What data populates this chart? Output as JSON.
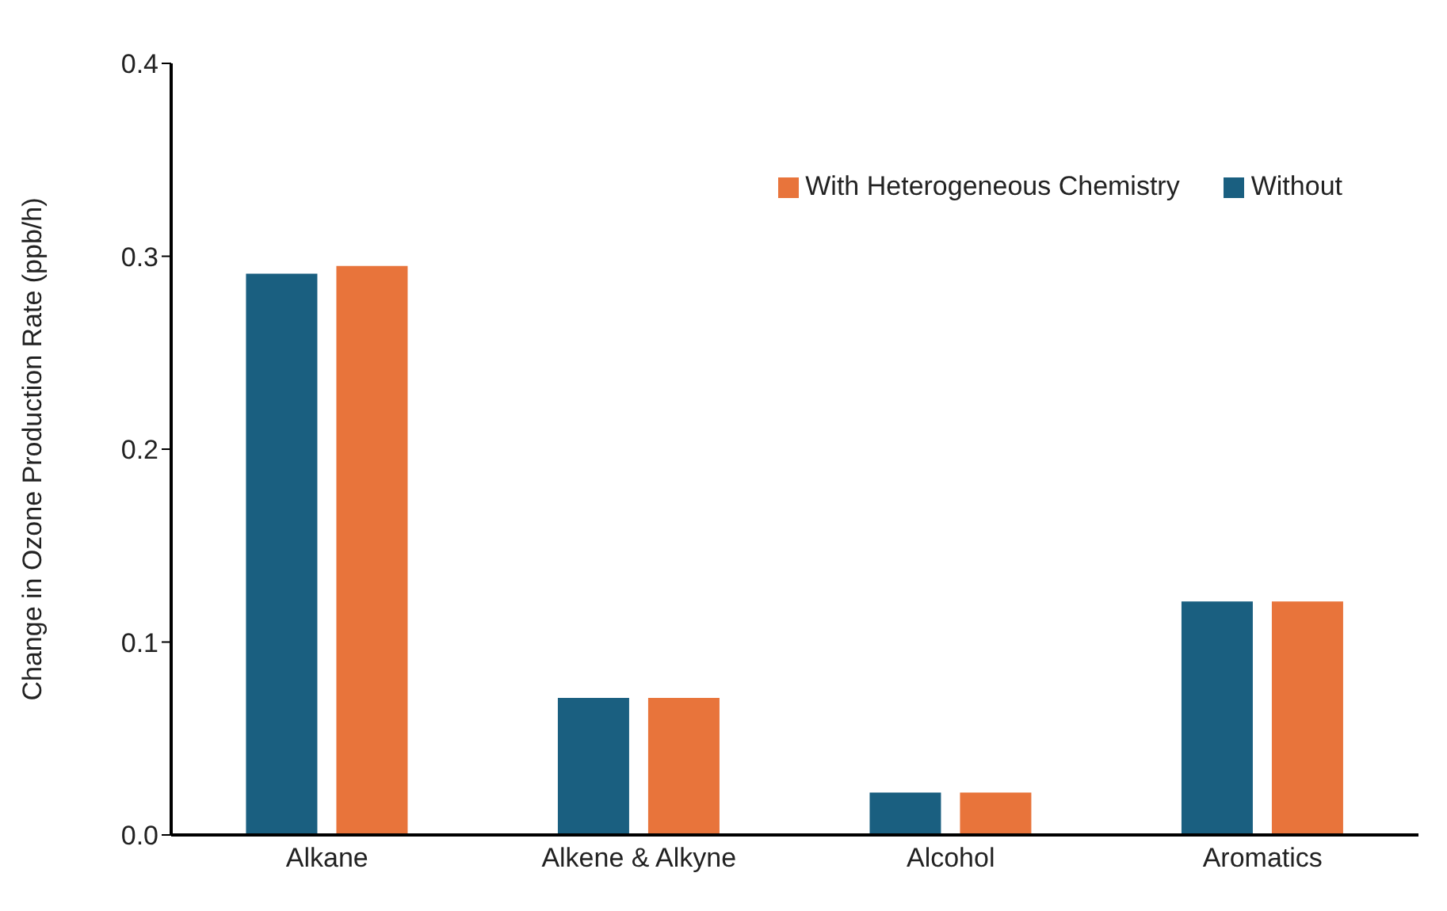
{
  "chart_data": {
    "type": "bar",
    "ylabel": "Change in Ozone Production Rate  (ppb/h)",
    "categories": [
      "Alkane",
      "Alkene & Alkyne",
      "Alcohol",
      "Aromatics"
    ],
    "series": [
      {
        "name": "Without",
        "color": "#1a5f80",
        "values": [
          0.291,
          0.071,
          0.022,
          0.121
        ]
      },
      {
        "name": "With Heterogeneous Chemistry",
        "color": "#e8743b",
        "values": [
          0.295,
          0.071,
          0.022,
          0.121
        ]
      }
    ],
    "ylim": [
      0,
      0.4
    ],
    "yticks": [
      {
        "value": 0,
        "label": "0.0"
      },
      {
        "value": 0.1,
        "label": "0.1"
      },
      {
        "value": 0.2,
        "label": "0.2"
      },
      {
        "value": 0.3,
        "label": "0.3"
      },
      {
        "value": 0.4,
        "label": "0.4"
      }
    ],
    "grid": false,
    "legend": "top right"
  }
}
